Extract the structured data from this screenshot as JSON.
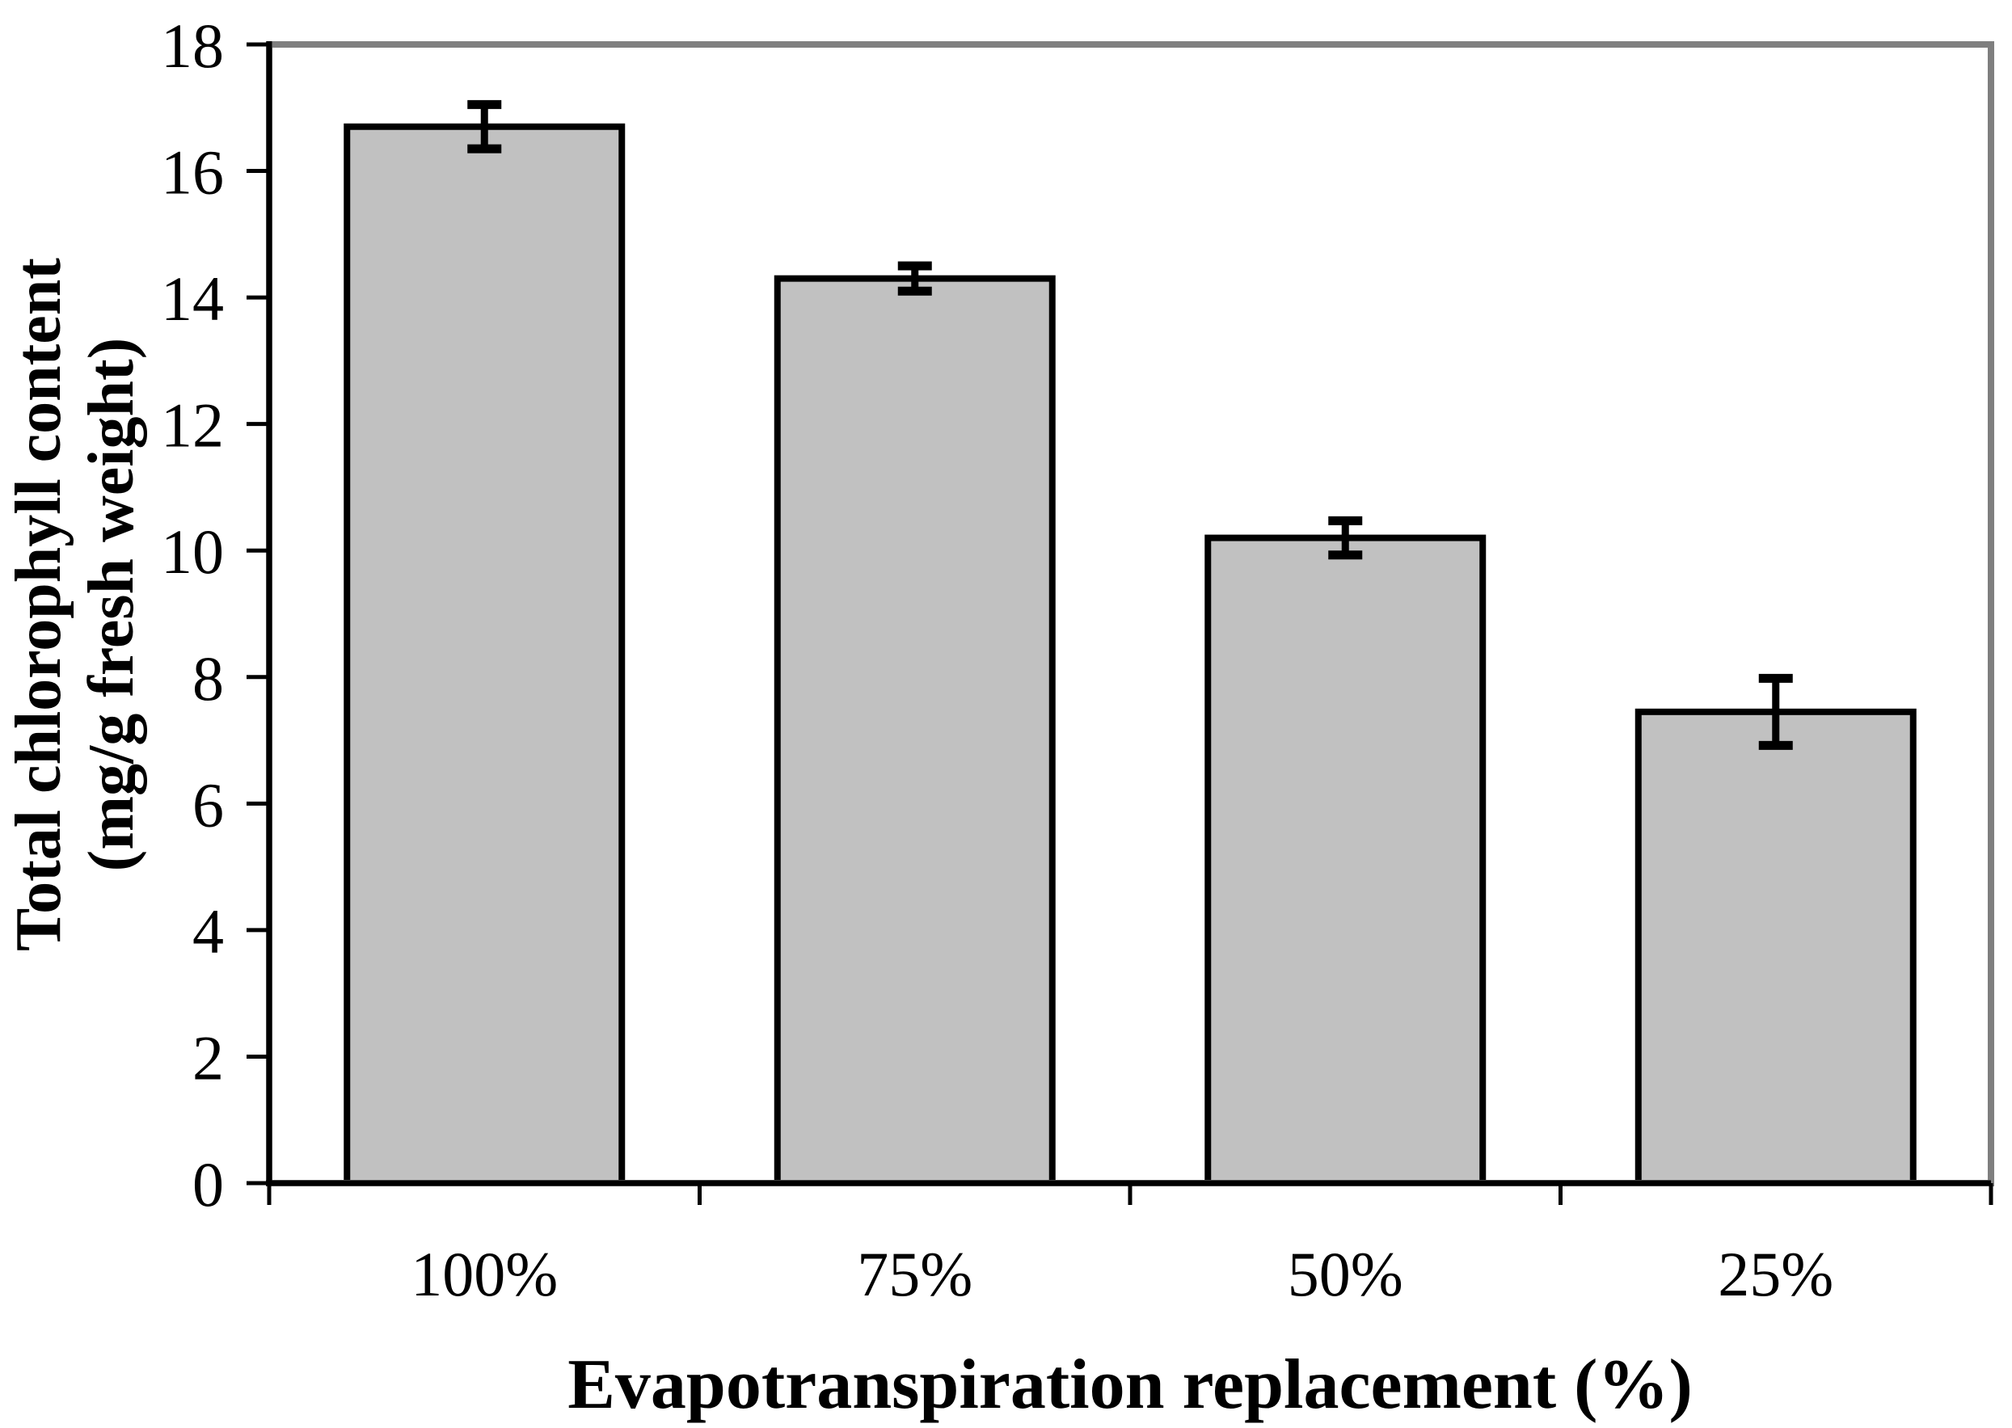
{
  "chart_data": {
    "type": "bar",
    "title": "",
    "xlabel": "Evapotranspiration replacement (%)",
    "ylabel": "Total chlorophyll content (mg/g fresh weight)",
    "ylabel_lines": [
      "Total chlorophyll content",
      "(mg/g fresh weight)"
    ],
    "categories": [
      "100%",
      "75%",
      "50%",
      "25%"
    ],
    "series": [
      {
        "name": "Total chlorophyll content",
        "values": [
          16.7,
          14.3,
          10.2,
          7.45
        ],
        "errors": [
          0.35,
          0.2,
          0.27,
          0.53
        ]
      }
    ],
    "values": [
      16.7,
      14.3,
      10.2,
      7.45
    ],
    "errors": [
      0.35,
      0.2,
      0.27,
      0.53
    ],
    "ylim": [
      0,
      18
    ],
    "ytick_step": 2,
    "ytick_labels": [
      "0",
      "2",
      "4",
      "6",
      "8",
      "10",
      "12",
      "14",
      "16",
      "18"
    ],
    "grid": false,
    "legend": "none",
    "error_bars": true,
    "colors": {
      "bar_fill": "#c1c1c1",
      "bar_stroke": "#000000",
      "plot_border": "#7f7f7f",
      "axis": "#000000",
      "error_bar": "#000000",
      "background": "#ffffff"
    }
  }
}
